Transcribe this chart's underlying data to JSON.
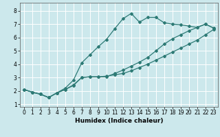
{
  "xlabel": "Humidex (Indice chaleur)",
  "bg_color": "#cce8ec",
  "grid_color": "#ffffff",
  "line_color": "#2d7a75",
  "marker": "D",
  "markersize": 2.0,
  "linewidth": 0.9,
  "xlim": [
    -0.5,
    23.5
  ],
  "ylim": [
    0.8,
    8.6
  ],
  "xticks": [
    0,
    1,
    2,
    3,
    4,
    5,
    6,
    7,
    8,
    9,
    10,
    11,
    12,
    13,
    14,
    15,
    16,
    17,
    18,
    19,
    20,
    21,
    22,
    23
  ],
  "yticks": [
    1,
    2,
    3,
    4,
    5,
    6,
    7,
    8
  ],
  "series1_x": [
    0,
    1,
    2,
    3,
    4,
    5,
    6,
    7,
    8,
    9,
    10,
    11,
    12,
    13,
    14,
    15,
    16,
    17,
    18,
    19,
    20,
    21,
    22,
    23
  ],
  "series1_y": [
    2.1,
    1.9,
    1.75,
    1.5,
    1.85,
    2.1,
    2.45,
    3.0,
    3.05,
    3.05,
    3.1,
    3.2,
    3.3,
    3.5,
    3.75,
    4.0,
    4.3,
    4.6,
    4.9,
    5.2,
    5.5,
    5.8,
    6.2,
    6.6
  ],
  "series2_x": [
    0,
    1,
    2,
    3,
    4,
    5,
    6,
    7,
    8,
    9,
    10,
    11,
    12,
    13,
    14,
    15,
    16,
    17,
    18,
    19,
    20,
    21,
    22,
    23
  ],
  "series2_y": [
    2.1,
    1.9,
    1.75,
    1.5,
    1.85,
    2.2,
    2.8,
    4.1,
    4.7,
    5.3,
    5.85,
    6.65,
    7.4,
    7.8,
    7.15,
    7.5,
    7.5,
    7.1,
    7.0,
    6.95,
    6.85,
    6.75,
    7.0,
    6.7
  ],
  "series3_x": [
    0,
    1,
    2,
    3,
    4,
    5,
    6,
    7,
    8,
    9,
    10,
    11,
    12,
    13,
    14,
    15,
    16,
    17,
    18,
    19,
    20,
    21,
    22,
    23
  ],
  "series3_y": [
    2.1,
    1.9,
    1.75,
    1.5,
    1.85,
    2.1,
    2.4,
    3.0,
    3.05,
    3.05,
    3.05,
    3.3,
    3.55,
    3.85,
    4.15,
    4.5,
    5.0,
    5.5,
    5.9,
    6.2,
    6.5,
    6.75,
    7.0,
    6.7
  ],
  "tick_fontsize": 5.5,
  "xlabel_fontsize": 6.5
}
